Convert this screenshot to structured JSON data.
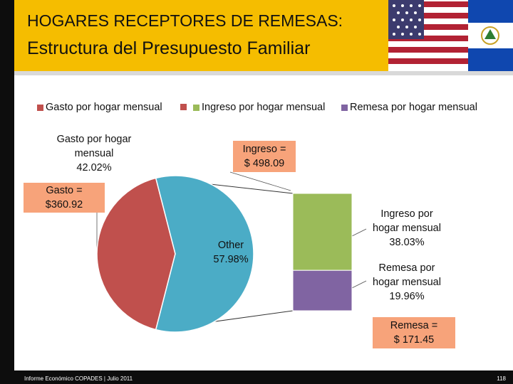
{
  "header": {
    "title_line1": "HOGARES RECEPTORES DE REMESAS:",
    "title_line2": "Estructura del Presupuesto Familiar"
  },
  "colors": {
    "gasto": "#c0504d",
    "ingreso": "#9bbb59",
    "remesa": "#8064a2",
    "other": "#4bacc6",
    "callout": "#f7a37a",
    "title_band": "#f5bd00"
  },
  "chart_data": {
    "type": "pie",
    "subtype": "bar-of-pie",
    "legend_position": "top",
    "legend": [
      "Gasto por hogar mensual",
      "Ingreso por hogar mensual",
      "Remesa por hogar mensual"
    ],
    "pie": {
      "slices": [
        {
          "name": "Gasto por hogar mensual",
          "value": 42.02,
          "label": "Gasto por hogar mensual 42.02%"
        },
        {
          "name": "Other",
          "value": 57.98,
          "label": "Other 57.98%"
        }
      ]
    },
    "bar": {
      "segments": [
        {
          "name": "Ingreso por hogar mensual",
          "value": 38.03,
          "label": "Ingreso por hogar mensual 38.03%"
        },
        {
          "name": "Remesa por hogar mensual",
          "value": 19.96,
          "label": "Remesa por hogar mensual 19.96%"
        }
      ]
    },
    "annotations": {
      "gasto": "Gasto = $360.92",
      "ingreso": "Ingreso = $ 498.09",
      "remesa": "Remesa = $ 171.45"
    }
  },
  "labels": {
    "gasto_pct": [
      "Gasto por hogar",
      "mensual",
      "42.02%"
    ],
    "other_pct": [
      "Other",
      "57.98%"
    ],
    "ingreso_pct": [
      "Ingreso por",
      "hogar mensual",
      "38.03%"
    ],
    "remesa_pct": [
      "Remesa por",
      "hogar mensual",
      "19.96%"
    ],
    "gasto_box": [
      "Gasto =",
      "$360.92"
    ],
    "ingreso_box": [
      "Ingreso =",
      "$ 498.09"
    ],
    "remesa_box": [
      "Remesa =",
      "$ 171.45"
    ]
  },
  "footer": {
    "text": "Informe Económico COPADES  |  Julio 2011",
    "page": "118"
  }
}
